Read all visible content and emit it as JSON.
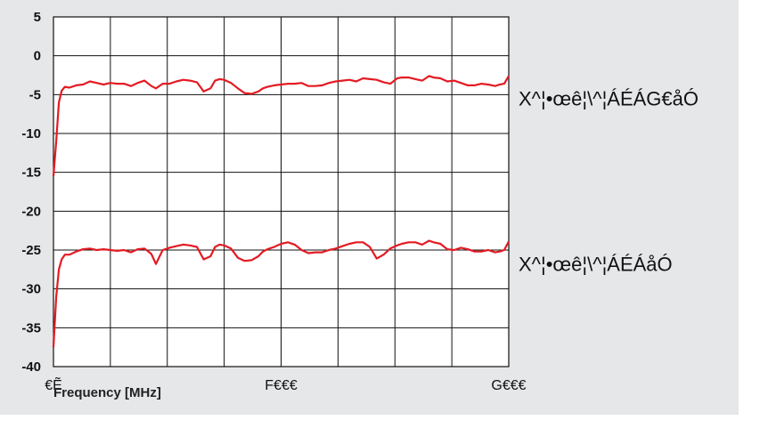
{
  "colors": {
    "panel_bg": "#e6e7e9",
    "plot_bg": "#ffffff",
    "grid": "#111111",
    "series": "#e31b23"
  },
  "chart_data": {
    "type": "line",
    "title": "",
    "xlabel": "Frequency [MHz]",
    "ylabel": "",
    "ylim": [
      -40,
      5
    ],
    "yticks": [
      5,
      0,
      -5,
      -10,
      -15,
      -20,
      -25,
      -30,
      -35,
      -40
    ],
    "x_tick_labels": [
      "€Ẽ",
      "F€€€",
      "G€€€"
    ],
    "grid": true,
    "x_divisions": 8,
    "series": [
      {
        "name": "X^¦•œê¦\\^¦ÁÉÁG€åÓ",
        "color": "#e31b23",
        "x": [
          0,
          0.006,
          0.012,
          0.018,
          0.025,
          0.035,
          0.05,
          0.065,
          0.08,
          0.095,
          0.11,
          0.125,
          0.14,
          0.155,
          0.17,
          0.185,
          0.2,
          0.215,
          0.225,
          0.24,
          0.255,
          0.27,
          0.285,
          0.3,
          0.315,
          0.33,
          0.345,
          0.355,
          0.365,
          0.375,
          0.39,
          0.405,
          0.42,
          0.435,
          0.45,
          0.46,
          0.47,
          0.485,
          0.5,
          0.515,
          0.53,
          0.545,
          0.56,
          0.575,
          0.59,
          0.605,
          0.62,
          0.635,
          0.65,
          0.665,
          0.68,
          0.695,
          0.71,
          0.725,
          0.74,
          0.755,
          0.765,
          0.78,
          0.795,
          0.81,
          0.825,
          0.835,
          0.85,
          0.865,
          0.88,
          0.895,
          0.91,
          0.925,
          0.94,
          0.955,
          0.97,
          0.98,
          0.99,
          1.0
        ],
        "y": [
          -15.5,
          -11,
          -6,
          -4.5,
          -4,
          -4.1,
          -3.8,
          -3.7,
          -3.3,
          -3.5,
          -3.7,
          -3.5,
          -3.6,
          -3.6,
          -3.9,
          -3.5,
          -3.2,
          -3.9,
          -4.2,
          -3.6,
          -3.6,
          -3.3,
          -3.1,
          -3.2,
          -3.4,
          -4.6,
          -4.2,
          -3.2,
          -3.0,
          -3.1,
          -3.5,
          -4.2,
          -4.8,
          -4.9,
          -4.6,
          -4.2,
          -4.0,
          -3.8,
          -3.7,
          -3.6,
          -3.6,
          -3.5,
          -3.9,
          -3.9,
          -3.8,
          -3.5,
          -3.3,
          -3.2,
          -3.1,
          -3.3,
          -2.9,
          -3.0,
          -3.1,
          -3.4,
          -3.6,
          -2.9,
          -2.8,
          -2.8,
          -3.0,
          -3.2,
          -2.6,
          -2.8,
          -2.9,
          -3.3,
          -3.2,
          -3.5,
          -3.8,
          -3.8,
          -3.6,
          -3.7,
          -3.9,
          -3.7,
          -3.6,
          -2.6
        ]
      },
      {
        "name": "X^¦•œê¦\\^¦ÁÉÁåÓ",
        "color": "#e31b23",
        "x": [
          0,
          0.006,
          0.012,
          0.018,
          0.025,
          0.035,
          0.05,
          0.065,
          0.08,
          0.095,
          0.11,
          0.125,
          0.14,
          0.155,
          0.17,
          0.185,
          0.2,
          0.215,
          0.225,
          0.24,
          0.255,
          0.27,
          0.285,
          0.3,
          0.315,
          0.33,
          0.345,
          0.355,
          0.365,
          0.375,
          0.39,
          0.405,
          0.42,
          0.435,
          0.45,
          0.46,
          0.47,
          0.485,
          0.5,
          0.515,
          0.53,
          0.545,
          0.56,
          0.575,
          0.59,
          0.605,
          0.62,
          0.635,
          0.65,
          0.665,
          0.68,
          0.695,
          0.71,
          0.725,
          0.74,
          0.755,
          0.765,
          0.78,
          0.795,
          0.81,
          0.825,
          0.835,
          0.85,
          0.865,
          0.88,
          0.895,
          0.91,
          0.925,
          0.94,
          0.955,
          0.97,
          0.98,
          0.99,
          1.0
        ],
        "y": [
          -37.5,
          -31,
          -27.5,
          -26.2,
          -25.6,
          -25.6,
          -25.2,
          -24.9,
          -24.8,
          -25.0,
          -24.9,
          -25.0,
          -25.1,
          -25.0,
          -25.3,
          -24.9,
          -24.8,
          -25.5,
          -26.8,
          -25.0,
          -24.7,
          -24.5,
          -24.3,
          -24.4,
          -24.6,
          -26.2,
          -25.8,
          -24.6,
          -24.3,
          -24.4,
          -24.8,
          -26.0,
          -26.4,
          -26.3,
          -25.8,
          -25.2,
          -24.9,
          -24.6,
          -24.2,
          -24.0,
          -24.3,
          -25.0,
          -25.4,
          -25.3,
          -25.3,
          -25.0,
          -24.8,
          -24.5,
          -24.2,
          -24.0,
          -24.0,
          -24.6,
          -26.1,
          -25.6,
          -24.8,
          -24.4,
          -24.2,
          -24.0,
          -24.0,
          -24.3,
          -23.8,
          -24.0,
          -24.2,
          -24.9,
          -25.0,
          -24.7,
          -24.9,
          -25.2,
          -25.2,
          -25.0,
          -25.3,
          -25.2,
          -25.0,
          -23.9
        ]
      }
    ]
  }
}
